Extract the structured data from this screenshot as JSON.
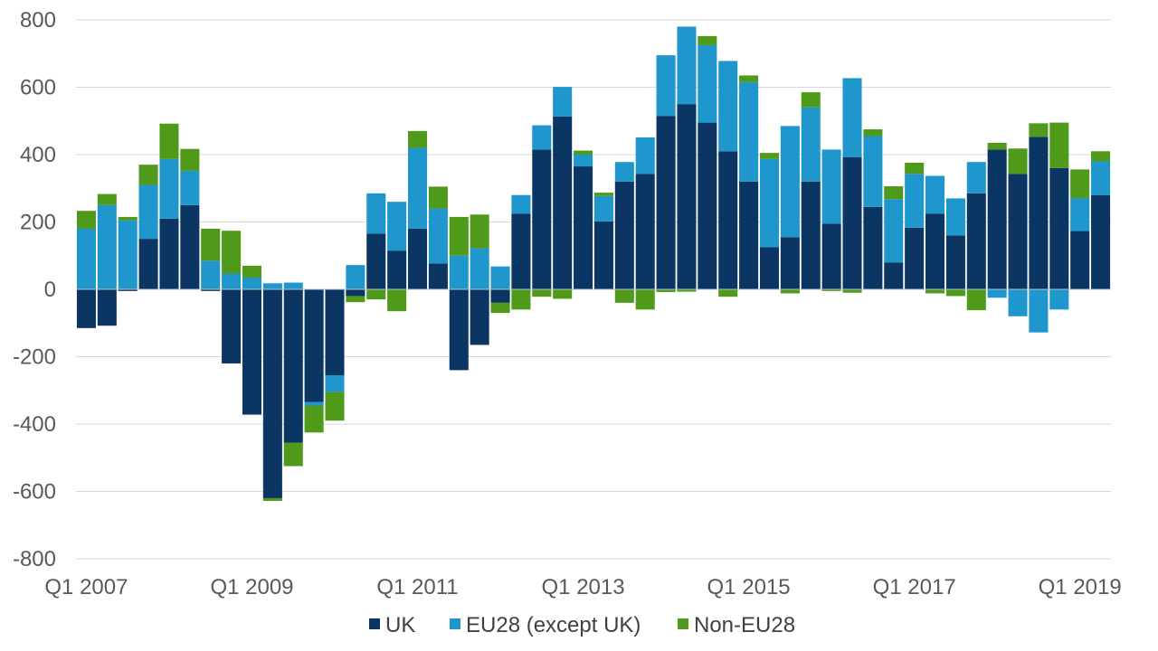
{
  "chart_data": {
    "type": "bar",
    "stacked": true,
    "title": "",
    "xlabel": "",
    "ylabel": "",
    "ylim": [
      -800,
      800
    ],
    "yticks": [
      800,
      600,
      400,
      200,
      0,
      -200,
      -400,
      -600,
      -800
    ],
    "grid": true,
    "legend_position": "bottom",
    "x_tick_labels": [
      "Q1 2007",
      "Q1 2009",
      "Q1 2011",
      "Q1 2013",
      "Q1 2015",
      "Q1 2017",
      "Q1 2019"
    ],
    "x_tick_indices": [
      0,
      8,
      16,
      24,
      32,
      40,
      48
    ],
    "categories": [
      "Q1 2007",
      "Q2 2007",
      "Q3 2007",
      "Q4 2007",
      "Q1 2008",
      "Q2 2008",
      "Q3 2008",
      "Q4 2008",
      "Q1 2009",
      "Q2 2009",
      "Q3 2009",
      "Q4 2009",
      "Q1 2010",
      "Q2 2010",
      "Q3 2010",
      "Q4 2010",
      "Q1 2011",
      "Q2 2011",
      "Q3 2011",
      "Q4 2011",
      "Q1 2012",
      "Q2 2012",
      "Q3 2012",
      "Q4 2012",
      "Q1 2013",
      "Q2 2013",
      "Q3 2013",
      "Q4 2013",
      "Q1 2014",
      "Q2 2014",
      "Q3 2014",
      "Q4 2014",
      "Q1 2015",
      "Q2 2015",
      "Q3 2015",
      "Q4 2015",
      "Q1 2016",
      "Q2 2016",
      "Q3 2016",
      "Q4 2016",
      "Q1 2017",
      "Q2 2017",
      "Q3 2017",
      "Q4 2017",
      "Q1 2018",
      "Q2 2018",
      "Q3 2018",
      "Q4 2018",
      "Q1 2019",
      "Q2 2019"
    ],
    "series": [
      {
        "name": "UK",
        "color": "#0b3563",
        "values": [
          -115,
          -108,
          -5,
          150,
          210,
          250,
          -5,
          -220,
          -372,
          -620,
          -455,
          -335,
          -255,
          -20,
          165,
          115,
          180,
          77,
          -240,
          -165,
          -40,
          225,
          415,
          513,
          365,
          202,
          320,
          343,
          515,
          550,
          495,
          410,
          320,
          125,
          155,
          320,
          195,
          392,
          245,
          80,
          183,
          225,
          160,
          285,
          415,
          343,
          453,
          360,
          173,
          280
        ]
      },
      {
        "name": "EU28 (except UK)",
        "color": "#1f96cc",
        "values": [
          180,
          250,
          205,
          160,
          177,
          102,
          85,
          47,
          35,
          18,
          20,
          -10,
          -50,
          72,
          120,
          145,
          240,
          163,
          100,
          122,
          68,
          55,
          72,
          88,
          35,
          75,
          58,
          108,
          180,
          230,
          230,
          268,
          295,
          262,
          330,
          220,
          220,
          235,
          210,
          188,
          160,
          112,
          110,
          93,
          -25,
          -80,
          -128,
          -60,
          98,
          100
        ]
      },
      {
        "name": "Non-EU28",
        "color": "#4f9a1a",
        "values": [
          53,
          33,
          10,
          60,
          105,
          65,
          95,
          127,
          35,
          -8,
          -70,
          -80,
          -85,
          -18,
          -30,
          -65,
          50,
          65,
          115,
          100,
          -30,
          -60,
          -22,
          -28,
          12,
          10,
          -40,
          -60,
          -8,
          -7,
          27,
          -22,
          20,
          18,
          -12,
          45,
          -5,
          -10,
          20,
          38,
          33,
          -12,
          -20,
          -62,
          20,
          75,
          40,
          135,
          85,
          30
        ]
      }
    ]
  }
}
